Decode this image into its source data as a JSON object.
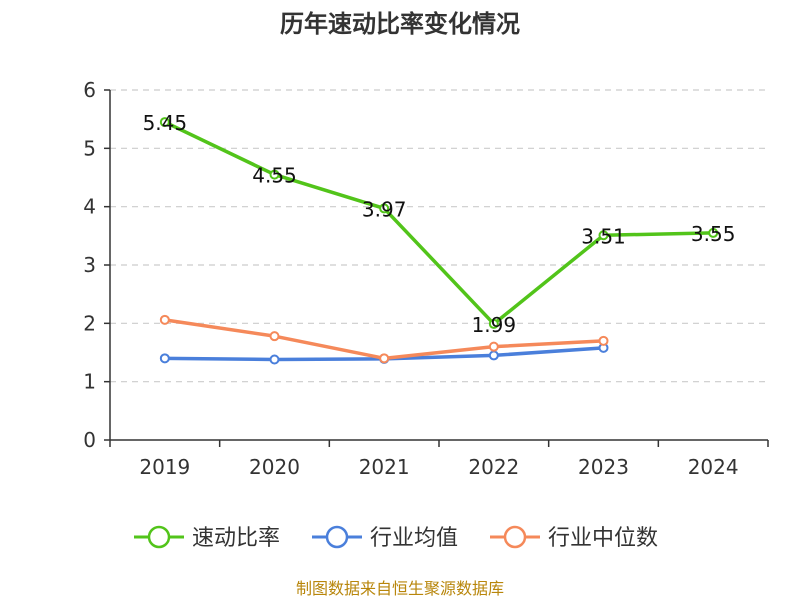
{
  "chart_data": {
    "type": "line",
    "title": "历年速动比率变化情况",
    "categories": [
      "2019",
      "2020",
      "2021",
      "2022",
      "2023",
      "2024"
    ],
    "ylim": [
      0,
      6
    ],
    "yticks": [
      0,
      1,
      2,
      3,
      4,
      5,
      6
    ],
    "grid": true,
    "legend_position": "bottom",
    "series": [
      {
        "name": "速动比率",
        "color": "#52c41a",
        "values": [
          5.45,
          4.55,
          3.97,
          1.99,
          3.51,
          3.55
        ],
        "labels": [
          "5.45",
          "4.55",
          "3.97",
          "1.99",
          "3.51",
          "3.55"
        ]
      },
      {
        "name": "行业均值",
        "color": "#4a7fdb",
        "values": [
          1.4,
          1.38,
          1.39,
          1.45,
          1.58,
          null
        ]
      },
      {
        "name": "行业中位数",
        "color": "#f5895a",
        "values": [
          2.06,
          1.78,
          1.4,
          1.6,
          1.7,
          null
        ]
      }
    ],
    "source": "制图数据来自恒生聚源数据库"
  }
}
